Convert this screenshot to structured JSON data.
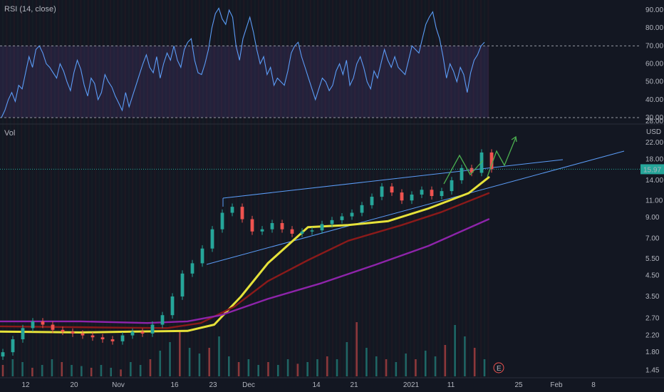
{
  "chart_data": [
    {
      "type": "line",
      "title": "RSI (14, close)",
      "y_ticks": [
        "90.00",
        "80.00",
        "70.00",
        "60.00",
        "50.00",
        "40.00",
        "30.00",
        "28.00"
      ],
      "ylim": [
        28,
        94
      ],
      "overbought": 70,
      "oversold": 30,
      "band_color": "#7e57c2",
      "line_color": "#5b9cf6",
      "series": [
        {
          "x": [
            0,
            1,
            2,
            3,
            4,
            5,
            6,
            7,
            8,
            9,
            10,
            11,
            12,
            13,
            14,
            15,
            16,
            17,
            18,
            19,
            20,
            21,
            22,
            23,
            24,
            25,
            26,
            27,
            28,
            29,
            30,
            31,
            32,
            33,
            34,
            35,
            36,
            37,
            38,
            39,
            40,
            41,
            42,
            43,
            44,
            45,
            46,
            47,
            48,
            49,
            50,
            51,
            52,
            53,
            54,
            55,
            56,
            57,
            58,
            59,
            60,
            61,
            62,
            63,
            64,
            65,
            66,
            67,
            68,
            69,
            70,
            71,
            72,
            73,
            74,
            75,
            76,
            77,
            78,
            79,
            80,
            81,
            82,
            83,
            84,
            85,
            86,
            87,
            88,
            89,
            90,
            91,
            92,
            93,
            94,
            95,
            96,
            97,
            98,
            99,
            100,
            101,
            102,
            103,
            104,
            105,
            106,
            107,
            108,
            109,
            110,
            111,
            112,
            113,
            114,
            115,
            116,
            117,
            118,
            119,
            120,
            121,
            122,
            123,
            124,
            125,
            126,
            127,
            128,
            129,
            130,
            131,
            132,
            133,
            134,
            135,
            136,
            137,
            138,
            139,
            140
          ],
          "values": [
            30,
            34,
            40,
            44,
            39,
            48,
            46,
            55,
            64,
            58,
            68,
            70,
            66,
            60,
            58,
            55,
            52,
            60,
            56,
            50,
            45,
            55,
            62,
            57,
            48,
            42,
            52,
            49,
            40,
            44,
            54,
            50,
            47,
            42,
            38,
            34,
            44,
            36,
            42,
            48,
            54,
            60,
            65,
            58,
            55,
            64,
            52,
            60,
            66,
            62,
            70,
            62,
            58,
            68,
            72,
            74,
            62,
            55,
            54,
            60,
            68,
            80,
            88,
            91,
            85,
            82,
            90,
            86,
            70,
            62,
            74,
            80,
            86,
            78,
            68,
            60,
            64,
            54,
            58,
            48,
            52,
            50,
            48,
            56,
            66,
            70,
            72,
            64,
            58,
            52,
            46,
            40,
            46,
            52,
            50,
            45,
            48,
            56,
            60,
            54,
            62,
            48,
            52,
            60,
            64,
            58,
            50,
            46,
            56,
            52,
            60,
            68,
            62,
            58,
            64,
            58,
            56,
            54,
            62,
            70,
            68,
            66,
            74,
            82,
            86,
            89,
            80,
            74,
            64,
            52,
            60,
            56,
            50,
            58,
            54,
            44,
            55,
            62,
            65,
            70,
            72
          ]
        }
      ]
    },
    {
      "type": "line",
      "title": "Vol",
      "y_ticks": [
        "22.00",
        "18.00",
        "14.00",
        "11.00",
        "9.00",
        "7.00",
        "5.50",
        "4.50",
        "3.50",
        "2.70",
        "2.20",
        "1.80",
        "1.45"
      ],
      "currency": "USD",
      "last_price": "15.97",
      "last_price_color": "#26a69a",
      "x_ticks": [
        "12",
        "20",
        "Nov",
        "16",
        "23",
        "Dec",
        "14",
        "21",
        "2021",
        "11",
        "25",
        "Feb",
        "8"
      ],
      "series": [
        {
          "name": "",
          "color": "#e6e23a",
          "x": [
            0,
            0.12,
            0.2,
            0.28,
            0.32,
            0.36,
            0.4,
            0.46,
            0.52,
            0.58,
            0.64,
            0.7,
            0.73
          ],
          "values": [
            2.3,
            2.28,
            2.3,
            2.32,
            2.5,
            3.5,
            5.2,
            8.0,
            8.2,
            8.6,
            10.0,
            12.0,
            14.5
          ]
        },
        {
          "name": "",
          "color": "#8b1a1a",
          "x": [
            0,
            0.15,
            0.25,
            0.3,
            0.35,
            0.4,
            0.46,
            0.52,
            0.6,
            0.66,
            0.73
          ],
          "values": [
            2.45,
            2.42,
            2.4,
            2.55,
            3.1,
            4.2,
            5.4,
            6.8,
            8.2,
            9.6,
            12.0
          ]
        },
        {
          "name": "",
          "color": "#8e24aa",
          "x": [
            0,
            0.12,
            0.22,
            0.28,
            0.33,
            0.4,
            0.48,
            0.56,
            0.64,
            0.73
          ],
          "values": [
            2.6,
            2.6,
            2.55,
            2.6,
            2.8,
            3.4,
            4.1,
            5.1,
            6.4,
            8.8
          ]
        }
      ],
      "candles_ohlc_approx": {
        "x": [
          0,
          0.015,
          0.03,
          0.045,
          0.06,
          0.075,
          0.09,
          0.105,
          0.12,
          0.135,
          0.15,
          0.165,
          0.18,
          0.195,
          0.21,
          0.225,
          0.24,
          0.255,
          0.27,
          0.285,
          0.3,
          0.315,
          0.33,
          0.345,
          0.36,
          0.375,
          0.39,
          0.405,
          0.42,
          0.435,
          0.45,
          0.465,
          0.48,
          0.495,
          0.51,
          0.525,
          0.54,
          0.555,
          0.57,
          0.585,
          0.6,
          0.615,
          0.63,
          0.645,
          0.66,
          0.675,
          0.69,
          0.705,
          0.72,
          0.735
        ],
        "close": [
          1.8,
          2.1,
          2.4,
          2.6,
          2.5,
          2.35,
          2.3,
          2.25,
          2.2,
          2.15,
          2.1,
          2.05,
          2.2,
          2.3,
          2.25,
          2.5,
          2.8,
          3.5,
          4.6,
          5.2,
          6.2,
          7.8,
          9.5,
          10.2,
          8.8,
          7.6,
          7.8,
          8.4,
          7.8,
          7.4,
          7.6,
          7.7,
          8.3,
          8.7,
          9.1,
          9.5,
          10.4,
          11.5,
          13.0,
          12.1,
          11.0,
          11.8,
          12.5,
          11.6,
          12.3,
          14.0,
          16.2,
          15.3,
          19.5,
          15.97
        ]
      },
      "volume_bars": [
        0.2,
        0.3,
        0.25,
        0.15,
        0.2,
        0.3,
        0.25,
        0.2,
        0.18,
        0.15,
        0.2,
        0.15,
        0.12,
        0.25,
        0.2,
        0.3,
        0.45,
        0.6,
        0.8,
        0.5,
        0.4,
        0.5,
        0.7,
        0.35,
        0.25,
        0.3,
        0.2,
        0.25,
        0.2,
        0.3,
        0.22,
        0.25,
        0.3,
        0.35,
        0.3,
        0.6,
        0.95,
        0.5,
        0.35,
        0.3,
        0.25,
        0.4,
        0.3,
        0.45,
        0.35,
        0.55,
        0.9,
        0.7,
        0.5,
        0.3
      ]
    }
  ]
}
